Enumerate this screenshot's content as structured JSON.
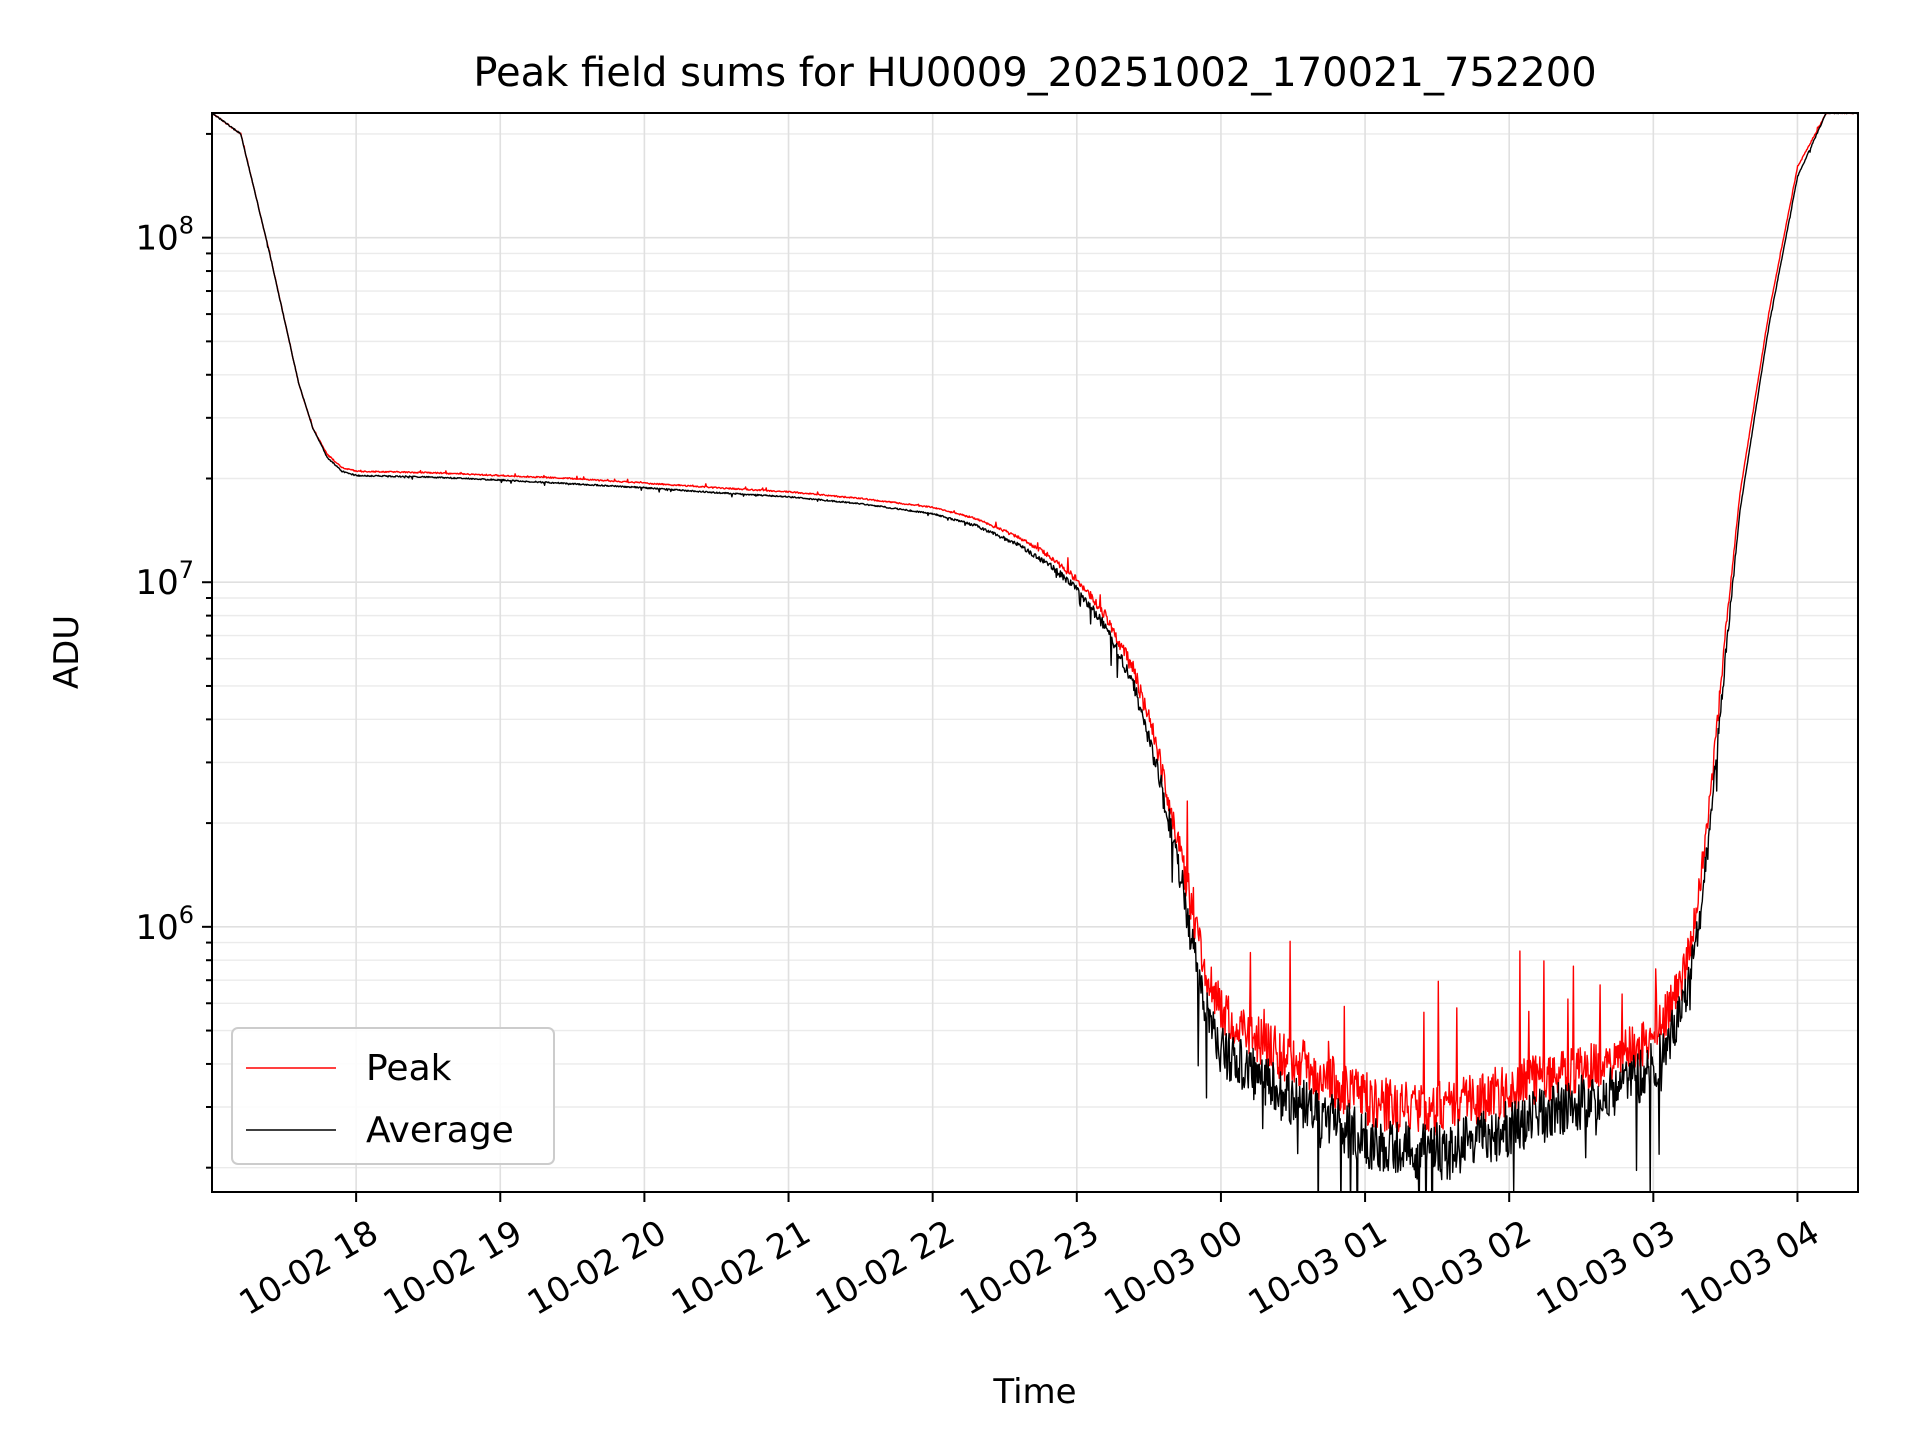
{
  "chart_data": {
    "type": "line",
    "title": "Peak field sums for HU0009_20251002_170021_752200",
    "xlabel": "Time",
    "ylabel": "ADU",
    "yscale": "log",
    "ylim": [
      170000,
      230000000
    ],
    "xlim_hours": [
      17.0,
      28.42
    ],
    "grid": true,
    "legend_position": "lower-left",
    "x_ticks": [
      {
        "hour": 18,
        "label": "10-02 18"
      },
      {
        "hour": 19,
        "label": "10-02 19"
      },
      {
        "hour": 20,
        "label": "10-02 20"
      },
      {
        "hour": 21,
        "label": "10-02 21"
      },
      {
        "hour": 22,
        "label": "10-02 22"
      },
      {
        "hour": 23,
        "label": "10-02 23"
      },
      {
        "hour": 24,
        "label": "10-03 00"
      },
      {
        "hour": 25,
        "label": "10-03 01"
      },
      {
        "hour": 26,
        "label": "10-03 02"
      },
      {
        "hour": 27,
        "label": "10-03 03"
      },
      {
        "hour": 28,
        "label": "10-03 04"
      }
    ],
    "y_ticks": [
      {
        "value": 1000000,
        "base": "10",
        "exp": "6"
      },
      {
        "value": 10000000,
        "base": "10",
        "exp": "7"
      },
      {
        "value": 100000000,
        "base": "10",
        "exp": "8"
      }
    ],
    "series": [
      {
        "name": "Peak",
        "color": "#ff0000",
        "x_hours": [
          17.0,
          17.2,
          17.4,
          17.6,
          17.7,
          17.8,
          17.9,
          18.0,
          18.5,
          19.0,
          19.5,
          20.0,
          20.5,
          21.0,
          21.5,
          22.0,
          22.3,
          22.6,
          22.8,
          23.0,
          23.2,
          23.4,
          23.55,
          23.7,
          23.8,
          23.9,
          24.0,
          24.2,
          24.4,
          24.6,
          24.8,
          25.0,
          25.2,
          25.4,
          25.6,
          25.8,
          26.0,
          26.2,
          26.4,
          26.6,
          26.8,
          27.0,
          27.1,
          27.2,
          27.3,
          27.4,
          27.5,
          27.6,
          27.8,
          28.0,
          28.2,
          28.3
        ],
        "values": [
          230000000,
          200000000,
          90000000,
          38000000,
          28000000,
          23500000,
          21500000,
          21000000,
          20800000,
          20400000,
          20000000,
          19400000,
          18800000,
          18300000,
          17500000,
          16500000,
          15300000,
          13500000,
          12000000,
          10200000,
          8000000,
          5500000,
          3400000,
          1800000,
          1100000,
          720000,
          560000,
          490000,
          430000,
          390000,
          350000,
          320000,
          300000,
          295000,
          300000,
          315000,
          340000,
          360000,
          380000,
          400000,
          430000,
          470000,
          560000,
          700000,
          1100000,
          2500000,
          7000000,
          18000000,
          60000000,
          160000000,
          230000000,
          230000000
        ]
      },
      {
        "name": "Average",
        "color": "#000000",
        "x_hours": [
          17.0,
          17.2,
          17.4,
          17.6,
          17.7,
          17.8,
          17.9,
          18.0,
          18.5,
          19.0,
          19.5,
          20.0,
          20.5,
          21.0,
          21.5,
          22.0,
          22.3,
          22.6,
          22.8,
          23.0,
          23.2,
          23.4,
          23.55,
          23.7,
          23.8,
          23.9,
          24.0,
          24.2,
          24.4,
          24.6,
          24.8,
          25.0,
          25.2,
          25.4,
          25.6,
          25.8,
          26.0,
          26.2,
          26.4,
          26.6,
          26.8,
          27.0,
          27.1,
          27.2,
          27.3,
          27.4,
          27.5,
          27.6,
          27.8,
          28.0,
          28.2,
          28.3
        ],
        "values": [
          230000000,
          200000000,
          90000000,
          38000000,
          28000000,
          23000000,
          21000000,
          20400000,
          20200000,
          19800000,
          19300000,
          18800000,
          18200000,
          17700000,
          16900000,
          15800000,
          14600000,
          12800000,
          11300000,
          9600000,
          7400000,
          5000000,
          3000000,
          1550000,
          900000,
          580000,
          440000,
          380000,
          330000,
          300000,
          270000,
          240000,
          225000,
          220000,
          225000,
          240000,
          260000,
          280000,
          300000,
          320000,
          345000,
          390000,
          460000,
          580000,
          900000,
          2100000,
          6000000,
          16000000,
          55000000,
          150000000,
          230000000,
          230000000
        ]
      }
    ]
  }
}
